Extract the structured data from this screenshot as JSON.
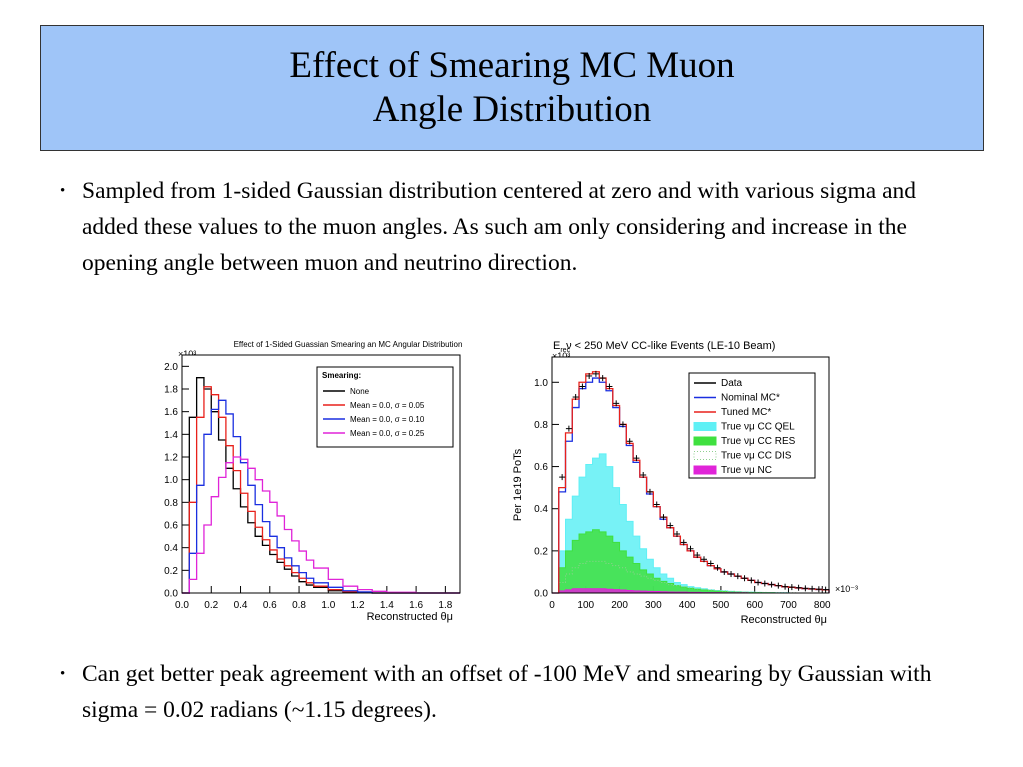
{
  "title": {
    "line1": "Effect of Smearing MC Muon",
    "line2": "Angle Distribution"
  },
  "bullets": [
    "Sampled from 1-sided Gaussian distribution centered at zero and with various sigma and added these values to the muon angles.  As such am only considering and increase in the opening angle between muon and neutrino direction.",
    "Can get better peak agreement with an offset of -100 MeV and smearing by Gaussian with sigma = 0.02 radians (~1.15 degrees)."
  ],
  "bullet_glyph": "•",
  "chart_data": [
    {
      "type": "line",
      "title": "Effect of 1-Sided Guassian Smearing an MC Angular Distribution",
      "xlabel": "Reconstructed θμ",
      "ylabel": "",
      "y_exponent_label": "×10³",
      "xlim": [
        0,
        1.9
      ],
      "ylim": [
        0,
        2.1
      ],
      "xticks": [
        0.0,
        0.2,
        0.4,
        0.6,
        0.8,
        1.0,
        1.2,
        1.4,
        1.6,
        1.8
      ],
      "xtick_labels": [
        "0.0",
        "0.2",
        "0.4",
        "0.6",
        "0.8",
        "1.0",
        "1.2",
        "1.4",
        "1.6",
        "1.8"
      ],
      "yticks": [
        0.0,
        0.2,
        0.4,
        0.6,
        0.8,
        1.0,
        1.2,
        1.4,
        1.6,
        1.8,
        2.0
      ],
      "ytick_labels": [
        "0.0",
        "0.2",
        "0.4",
        "0.6",
        "0.8",
        "1.0",
        "1.2",
        "1.4",
        "1.6",
        "1.8",
        "2.0"
      ],
      "legend_title": "Smearing:",
      "legend_position": "top-right",
      "x": [
        0.0,
        0.05,
        0.1,
        0.15,
        0.2,
        0.25,
        0.3,
        0.35,
        0.4,
        0.45,
        0.5,
        0.55,
        0.6,
        0.65,
        0.7,
        0.75,
        0.8,
        0.85,
        0.9,
        1.0,
        1.1,
        1.2,
        1.3,
        1.4,
        1.6,
        1.8,
        1.9
      ],
      "series": [
        {
          "name": "None",
          "color": "#000000",
          "values": [
            0.0,
            1.55,
            1.9,
            1.8,
            1.6,
            1.35,
            1.1,
            0.92,
            0.76,
            0.62,
            0.5,
            0.42,
            0.34,
            0.27,
            0.21,
            0.15,
            0.1,
            0.07,
            0.05,
            0.02,
            0.01,
            0.005,
            0.0,
            0.0,
            0.0,
            0.0,
            0.0
          ]
        },
        {
          "name": "Mean = 0.0, σ = 0.05",
          "color": "#e8211b",
          "values": [
            0.0,
            0.8,
            1.55,
            1.82,
            1.75,
            1.55,
            1.3,
            1.08,
            0.88,
            0.72,
            0.58,
            0.47,
            0.38,
            0.3,
            0.24,
            0.18,
            0.13,
            0.09,
            0.06,
            0.03,
            0.012,
            0.005,
            0.0,
            0.0,
            0.0,
            0.0,
            0.0
          ]
        },
        {
          "name": "Mean = 0.0, σ = 0.10",
          "color": "#1a2fe0",
          "values": [
            0.0,
            0.35,
            0.95,
            1.4,
            1.62,
            1.7,
            1.58,
            1.38,
            1.15,
            0.95,
            0.78,
            0.63,
            0.5,
            0.4,
            0.31,
            0.24,
            0.18,
            0.13,
            0.09,
            0.05,
            0.02,
            0.01,
            0.0,
            0.0,
            0.0,
            0.0,
            0.0
          ]
        },
        {
          "name": "Mean = 0.0, σ = 0.25",
          "color": "#e024d8",
          "values": [
            0.0,
            0.12,
            0.35,
            0.6,
            0.85,
            1.02,
            1.15,
            1.2,
            1.18,
            1.1,
            1.0,
            0.9,
            0.8,
            0.68,
            0.56,
            0.46,
            0.37,
            0.29,
            0.22,
            0.12,
            0.06,
            0.03,
            0.015,
            0.006,
            0.0,
            0.0,
            0.0
          ]
        }
      ]
    },
    {
      "type": "line",
      "title": "E_ν < 250 MeV CC-like Events (LE-10 Beam)",
      "title_prefix": "E",
      "title_sub": "rec",
      "title_nu": "ν",
      "title_rest": " < 250 MeV CC-like Events (LE-10 Beam)",
      "xlabel": "Reconstructed θμ",
      "ylabel": "Per 1e19 PoTs",
      "x_exponent_label": "×10⁻³",
      "y_exponent_label": "×10³",
      "xlim": [
        0,
        820
      ],
      "ylim": [
        0,
        1.12
      ],
      "xticks": [
        0,
        100,
        200,
        300,
        400,
        500,
        600,
        700,
        800
      ],
      "xtick_labels": [
        "0",
        "100",
        "200",
        "300",
        "400",
        "500",
        "600",
        "700",
        "800"
      ],
      "yticks": [
        0.0,
        0.2,
        0.4,
        0.6,
        0.8,
        1.0
      ],
      "ytick_labels": [
        "0.0",
        "0.2",
        "0.4",
        "0.6",
        "0.8",
        "1.0"
      ],
      "legend_position": "top-right",
      "x": [
        0,
        20,
        40,
        60,
        80,
        100,
        120,
        140,
        160,
        180,
        200,
        220,
        240,
        260,
        280,
        300,
        320,
        340,
        360,
        380,
        400,
        420,
        440,
        460,
        480,
        500,
        520,
        540,
        560,
        580,
        600,
        620,
        640,
        660,
        680,
        700,
        720,
        740,
        760,
        780,
        800,
        820
      ],
      "series": [
        {
          "name": "Data",
          "color": "#000000",
          "style": "points",
          "values": [
            0.0,
            0.55,
            0.78,
            0.93,
            0.98,
            1.03,
            1.04,
            1.02,
            0.98,
            0.9,
            0.8,
            0.72,
            0.64,
            0.56,
            0.48,
            0.42,
            0.36,
            0.32,
            0.28,
            0.24,
            0.21,
            0.18,
            0.16,
            0.14,
            0.12,
            0.1,
            0.09,
            0.08,
            0.07,
            0.06,
            0.05,
            0.045,
            0.04,
            0.035,
            0.03,
            0.028,
            0.025,
            0.022,
            0.02,
            0.018,
            0.016,
            0.0
          ]
        },
        {
          "name": "Nominal MC*",
          "color": "#1a2fe0",
          "values": [
            0.0,
            0.48,
            0.72,
            0.88,
            0.97,
            1.0,
            1.02,
            1.0,
            0.96,
            0.88,
            0.79,
            0.7,
            0.62,
            0.55,
            0.47,
            0.41,
            0.35,
            0.31,
            0.27,
            0.23,
            0.2,
            0.17,
            0.15,
            0.13,
            0.115,
            0.1,
            0.09,
            0.08,
            0.07,
            0.06,
            0.05,
            0.045,
            0.04,
            0.035,
            0.03,
            0.027,
            0.024,
            0.021,
            0.019,
            0.017,
            0.015,
            0.0
          ]
        },
        {
          "name": "Tuned MC*",
          "color": "#e8211b",
          "values": [
            0.0,
            0.5,
            0.76,
            0.92,
            1.0,
            1.04,
            1.05,
            1.02,
            0.97,
            0.89,
            0.8,
            0.71,
            0.63,
            0.55,
            0.48,
            0.41,
            0.36,
            0.31,
            0.27,
            0.23,
            0.2,
            0.17,
            0.15,
            0.13,
            0.115,
            0.1,
            0.09,
            0.08,
            0.07,
            0.06,
            0.05,
            0.045,
            0.04,
            0.035,
            0.03,
            0.027,
            0.024,
            0.021,
            0.019,
            0.017,
            0.015,
            0.0
          ]
        },
        {
          "name": "True νμ CC QEL",
          "color": "#5ff0f5",
          "style": "fill",
          "values": [
            0.0,
            0.2,
            0.35,
            0.46,
            0.55,
            0.61,
            0.64,
            0.66,
            0.6,
            0.5,
            0.42,
            0.34,
            0.27,
            0.21,
            0.16,
            0.12,
            0.09,
            0.07,
            0.05,
            0.04,
            0.03,
            0.025,
            0.02,
            0.015,
            0.012,
            0.01,
            0.008,
            0.006,
            0.005,
            0.004,
            0.003,
            0.002,
            0.002,
            0.001,
            0.001,
            0.0,
            0.0,
            0.0,
            0.0,
            0.0,
            0.0,
            0.0
          ]
        },
        {
          "name": "True νμ CC RES",
          "color": "#3fe03f",
          "style": "fill",
          "values": [
            0.0,
            0.12,
            0.2,
            0.25,
            0.28,
            0.29,
            0.3,
            0.29,
            0.27,
            0.24,
            0.2,
            0.17,
            0.14,
            0.11,
            0.09,
            0.07,
            0.055,
            0.045,
            0.035,
            0.028,
            0.022,
            0.018,
            0.014,
            0.011,
            0.009,
            0.007,
            0.005,
            0.004,
            0.003,
            0.002,
            0.002,
            0.001,
            0.001,
            0.0,
            0.0,
            0.0,
            0.0,
            0.0,
            0.0,
            0.0,
            0.0,
            0.0
          ]
        },
        {
          "name": "True νμ CC DIS",
          "color": "#8fcf8f",
          "style": "dotted",
          "values": [
            0.0,
            0.05,
            0.09,
            0.12,
            0.14,
            0.15,
            0.15,
            0.15,
            0.14,
            0.13,
            0.12,
            0.1,
            0.09,
            0.08,
            0.07,
            0.06,
            0.05,
            0.04,
            0.035,
            0.03,
            0.025,
            0.02,
            0.018,
            0.015,
            0.012,
            0.01,
            0.008,
            0.006,
            0.005,
            0.004,
            0.003,
            0.003,
            0.002,
            0.002,
            0.001,
            0.001,
            0.0,
            0.0,
            0.0,
            0.0,
            0.0,
            0.0
          ]
        },
        {
          "name": "True νμ NC",
          "color": "#e024d8",
          "style": "fill",
          "values": [
            0.0,
            0.01,
            0.015,
            0.02,
            0.02,
            0.02,
            0.02,
            0.02,
            0.018,
            0.016,
            0.014,
            0.012,
            0.01,
            0.009,
            0.008,
            0.007,
            0.006,
            0.005,
            0.004,
            0.004,
            0.003,
            0.003,
            0.002,
            0.002,
            0.002,
            0.001,
            0.001,
            0.001,
            0.001,
            0.0,
            0.0,
            0.0,
            0.0,
            0.0,
            0.0,
            0.0,
            0.0,
            0.0,
            0.0,
            0.0,
            0.0,
            0.0
          ]
        }
      ]
    }
  ]
}
